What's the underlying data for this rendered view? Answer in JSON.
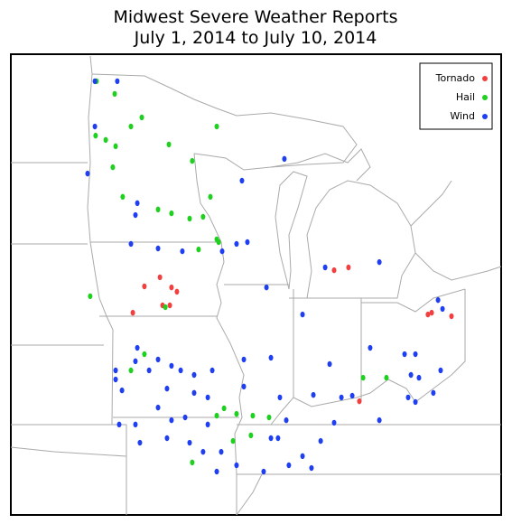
{
  "map": {
    "title": [
      "Midwest Severe Weather Reports",
      "July 1, 2014 to July 10, 2014"
    ],
    "series": [
      {
        "name": "Tornado",
        "color": "#f04040",
        "lon": [
          -93.43,
          -92.94,
          -92.71,
          -93.32,
          -93.01,
          -94.58,
          -94.09,
          -86.04,
          -85.43,
          -82.06,
          -81.9,
          -81.06,
          -84.97
        ],
        "lat": [
          42.11,
          41.71,
          41.54,
          41.0,
          41.0,
          40.71,
          41.75,
          42.39,
          42.5,
          40.64,
          40.71,
          40.57,
          37.21
        ]
      },
      {
        "name": "Hail",
        "color": "#20d020",
        "lon": [
          -96.12,
          -95.35,
          -94.2,
          -94.66,
          -96.16,
          -95.73,
          -95.43,
          -95.31,
          -93.05,
          -92.06,
          -91.02,
          -95.01,
          -93.51,
          -92.94,
          -92.17,
          -91.29,
          -91.6,
          -91.02,
          -91.79,
          -90.94,
          -96.39,
          -93.2,
          -94.66,
          -94.09,
          -91.02,
          -90.71,
          -90.18,
          -89.49,
          -88.8,
          -90.33,
          -92.06,
          -84.81,
          -83.82,
          -89.57
        ],
        "lat": [
          49.86,
          49.36,
          48.43,
          48.07,
          47.71,
          47.54,
          46.46,
          47.29,
          47.36,
          46.71,
          48.07,
          45.29,
          44.79,
          44.64,
          44.43,
          45.29,
          44.5,
          43.61,
          43.21,
          43.5,
          41.36,
          40.93,
          38.43,
          39.07,
          36.64,
          36.93,
          36.71,
          36.64,
          36.57,
          35.64,
          34.79,
          38.14,
          38.14,
          35.86
        ]
      },
      {
        "name": "Wind",
        "color": "#2040f0",
        "lon": [
          -96.19,
          -95.24,
          -96.19,
          -96.5,
          -94.39,
          -94.47,
          -93.51,
          -92.48,
          -90.79,
          -90.18,
          -89.72,
          -89.95,
          -88.15,
          -94.66,
          -88.91,
          -87.38,
          -86.42,
          -84.12,
          -81.63,
          -81.44,
          -84.51,
          -83.05,
          -82.59,
          -82.78,
          -82.44,
          -81.83,
          -82.59,
          -81.52,
          -85.73,
          -85.27,
          -82.9,
          -86.23,
          -86.92,
          -88.07,
          -88.42,
          -89.03,
          -87.96,
          -87.0,
          -91.02,
          -95.31,
          -95.31,
          -95.04,
          -94.47,
          -94.39,
          -93.89,
          -93.51,
          -93.13,
          -92.94,
          -92.55,
          -91.98,
          -91.98,
          -91.4,
          -93.51,
          -94.47,
          -94.28,
          -95.16,
          -92.94,
          -92.36,
          -92.17,
          -93.13,
          -91.21,
          -89.87,
          -91.4,
          -89.87,
          -88.72,
          -88.34,
          -87.38,
          -86.61,
          -86.04,
          -84.12,
          -91.6,
          -90.83,
          -90.18,
          -88.72
        ],
        "lat": [
          49.86,
          49.86,
          48.07,
          46.21,
          45.04,
          44.57,
          43.25,
          43.14,
          43.14,
          43.43,
          43.5,
          45.93,
          46.79,
          43.43,
          41.71,
          40.64,
          42.5,
          42.71,
          41.21,
          40.86,
          39.32,
          39.07,
          39.07,
          38.25,
          38.14,
          37.54,
          37.18,
          38.43,
          37.36,
          37.43,
          37.36,
          38.68,
          37.46,
          36.46,
          35.75,
          34.43,
          34.68,
          34.57,
          34.43,
          38.43,
          38.07,
          37.64,
          38.79,
          39.32,
          38.43,
          38.86,
          37.71,
          38.61,
          38.43,
          38.25,
          37.54,
          37.36,
          36.96,
          36.29,
          35.57,
          36.29,
          36.46,
          36.57,
          35.57,
          35.75,
          38.43,
          38.86,
          36.29,
          37.79,
          38.93,
          37.36,
          35.04,
          35.64,
          36.36,
          36.46,
          35.21,
          35.21,
          34.68,
          35.75
        ]
      }
    ]
  }
}
